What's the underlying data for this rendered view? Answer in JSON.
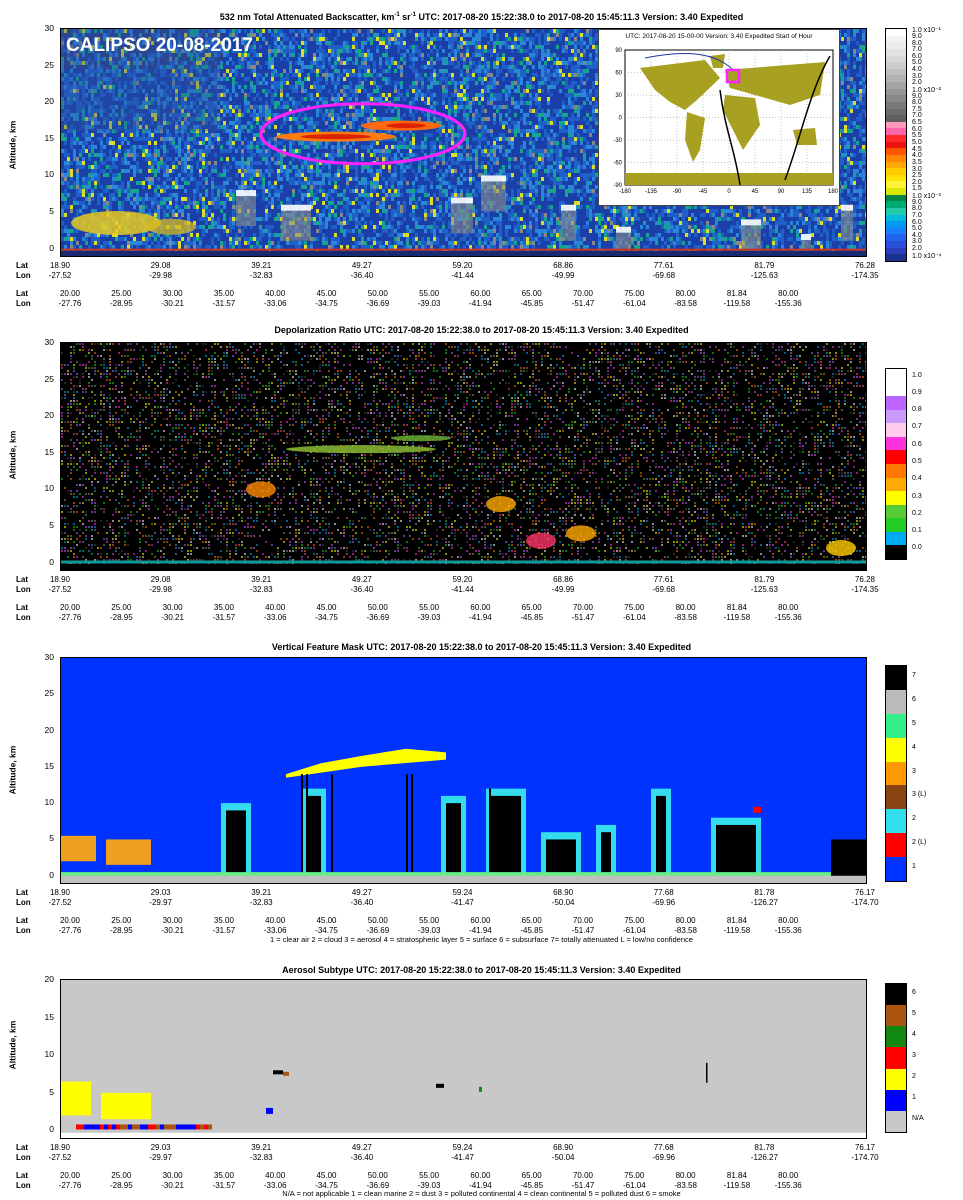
{
  "overlay_label": "CALIPSO 20-08-2017",
  "panels": [
    {
      "title": "532 nm Total Attenuated Backscatter, km",
      "title_sup1": "-1",
      "title_mid": " sr",
      "title_sup2": "-1",
      "title_rest": "   UTC:  2017-08-20 15:22:38.0  to  2017-08-20 15:45:11.3   Version: 3.40  Expedited",
      "ylabel": "Altitude, km",
      "yticks": [
        "30",
        "25",
        "20",
        "15",
        "10",
        "5",
        "0"
      ],
      "lat_lon_major": [
        [
          "18.90",
          "-27.52"
        ],
        [
          "29.08",
          "-29.98"
        ],
        [
          "39.21",
          "-32.83"
        ],
        [
          "49.27",
          "-36.40"
        ],
        [
          "59.20",
          "-41.44"
        ],
        [
          "68.86",
          "-49.99"
        ],
        [
          "77.61",
          "-69.68"
        ],
        [
          "81.79",
          "-125.63"
        ],
        [
          "76.28",
          "-174.35"
        ]
      ],
      "lat_lon_minor": [
        [
          "20.00",
          "-27.76"
        ],
        [
          "25.00",
          "-28.95"
        ],
        [
          "30.00",
          "-30.21"
        ],
        [
          "35.00",
          "-31.57"
        ],
        [
          "40.00",
          "-33.06"
        ],
        [
          "45.00",
          "-34.75"
        ],
        [
          "50.00",
          "-36.69"
        ],
        [
          "55.00",
          "-39.03"
        ],
        [
          "60.00",
          "-41.94"
        ],
        [
          "65.00",
          "-45.85"
        ],
        [
          "70.00",
          "-51.47"
        ],
        [
          "75.00",
          "-61.04"
        ],
        [
          "80.00",
          "-83.58"
        ],
        [
          "81.84",
          "-119.58"
        ],
        [
          "80.00",
          "-155.36"
        ]
      ],
      "colorbar": [
        "1.0 x10⁻¹",
        "9.0",
        "8.0",
        "7.0",
        "6.0",
        "5.0",
        "4.0",
        "3.0",
        "2.0",
        "1.0 x10⁻²",
        "9.0",
        "8.0",
        "7.5",
        "7.0",
        "6.5",
        "6.0",
        "5.5",
        "5.0",
        "4.5",
        "4.0",
        "3.5",
        "3.0",
        "2.5",
        "2.0",
        "1.5",
        "1.0 x10⁻³",
        "9.0",
        "8.0",
        "7.0",
        "6.0",
        "5.0",
        "4.0",
        "3.0",
        "2.0",
        "1.0 x10⁻⁴"
      ]
    },
    {
      "title": "Depolarization Ratio   UTC:  2017-08-20 15:22:38.0  to  2017-08-20 15:45:11.3   Version: 3.40  Expedited",
      "ylabel": "Altitude, km",
      "yticks": [
        "30",
        "25",
        "20",
        "15",
        "10",
        "5",
        "0"
      ],
      "lat_lon_major": [
        [
          "18.90",
          "-27.52"
        ],
        [
          "29.08",
          "-29.98"
        ],
        [
          "39.21",
          "-32.83"
        ],
        [
          "49.27",
          "-36.40"
        ],
        [
          "59.20",
          "-41.44"
        ],
        [
          "68.86",
          "-49.99"
        ],
        [
          "77.61",
          "-69.68"
        ],
        [
          "81.79",
          "-125.63"
        ],
        [
          "76.28",
          "-174.35"
        ]
      ],
      "lat_lon_minor": [
        [
          "20.00",
          "-27.76"
        ],
        [
          "25.00",
          "-28.95"
        ],
        [
          "30.00",
          "-30.21"
        ],
        [
          "35.00",
          "-31.57"
        ],
        [
          "40.00",
          "-33.06"
        ],
        [
          "45.00",
          "-34.75"
        ],
        [
          "50.00",
          "-36.69"
        ],
        [
          "55.00",
          "-39.03"
        ],
        [
          "60.00",
          "-41.94"
        ],
        [
          "65.00",
          "-45.85"
        ],
        [
          "70.00",
          "-51.47"
        ],
        [
          "75.00",
          "-61.04"
        ],
        [
          "80.00",
          "-83.58"
        ],
        [
          "81.84",
          "-119.58"
        ],
        [
          "80.00",
          "-155.36"
        ]
      ],
      "colorbar": [
        "1.0",
        "0.9",
        "0.8",
        "0.7",
        "0.6",
        "0.5",
        "0.4",
        "0.3",
        "0.2",
        "0.1",
        "0.0"
      ]
    },
    {
      "title": "Vertical Feature Mask   UTC:  2017-08-20  15:22:38.0  to  2017-08-20  15:45:11.3   Version: 3.40  Expedited",
      "ylabel": "Altitude, km",
      "yticks": [
        "30",
        "25",
        "20",
        "15",
        "10",
        "5",
        "0"
      ],
      "lat_lon_major": [
        [
          "18.90",
          "-27.52"
        ],
        [
          "29.03",
          "-29.97"
        ],
        [
          "39.21",
          "-32.83"
        ],
        [
          "49.27",
          "-36.40"
        ],
        [
          "59.24",
          "-41.47"
        ],
        [
          "68.90",
          "-50.04"
        ],
        [
          "77.68",
          "-69.96"
        ],
        [
          "81.78",
          "-126.27"
        ],
        [
          "76.17",
          "-174.70"
        ]
      ],
      "lat_lon_minor": [
        [
          "20.00",
          "-27.76"
        ],
        [
          "25.00",
          "-28.95"
        ],
        [
          "30.00",
          "-30.21"
        ],
        [
          "35.00",
          "-31.57"
        ],
        [
          "40.00",
          "-33.06"
        ],
        [
          "45.00",
          "-34.75"
        ],
        [
          "50.00",
          "-36.69"
        ],
        [
          "55.00",
          "-39.03"
        ],
        [
          "60.00",
          "-41.94"
        ],
        [
          "65.00",
          "-45.85"
        ],
        [
          "70.00",
          "-51.47"
        ],
        [
          "75.00",
          "-61.04"
        ],
        [
          "80.00",
          "-83.58"
        ],
        [
          "81.84",
          "-119.58"
        ],
        [
          "80.00",
          "-155.36"
        ]
      ],
      "colorbar": [
        "7",
        "6",
        "5",
        "4",
        "3",
        "3 (L)",
        "2",
        "2 (L)",
        "1"
      ],
      "legend": "1 = clear air    2 = cloud    3 = aerosol    4 = stratospheric layer    5 = surface    6 = subsurface    7= totally attenuated    L = low/no confidence"
    },
    {
      "title": "Aerosol Subtype   UTC:  2017-08-20  15:22:38.0  to  2017-08-20  15:45:11.3   Version: 3.40  Expedited",
      "ylabel": "Altitude, km",
      "yticks": [
        "20",
        "15",
        "10",
        "5",
        "0"
      ],
      "lat_lon_major": [
        [
          "18.90",
          "-27.52"
        ],
        [
          "29.03",
          "-29.97"
        ],
        [
          "39.21",
          "-32.83"
        ],
        [
          "49.27",
          "-36.40"
        ],
        [
          "59.24",
          "-41.47"
        ],
        [
          "68.90",
          "-50.04"
        ],
        [
          "77.68",
          "-69.96"
        ],
        [
          "81.78",
          "-126.27"
        ],
        [
          "76.17",
          "-174.70"
        ]
      ],
      "lat_lon_minor": [
        [
          "20.00",
          "-27.76"
        ],
        [
          "25.00",
          "-28.95"
        ],
        [
          "30.00",
          "-30.21"
        ],
        [
          "35.00",
          "-31.57"
        ],
        [
          "40.00",
          "-33.06"
        ],
        [
          "45.00",
          "-34.75"
        ],
        [
          "50.00",
          "-36.69"
        ],
        [
          "55.00",
          "-39.03"
        ],
        [
          "60.00",
          "-41.94"
        ],
        [
          "65.00",
          "-45.85"
        ],
        [
          "70.00",
          "-51.47"
        ],
        [
          "75.00",
          "-61.04"
        ],
        [
          "80.00",
          "-83.58"
        ],
        [
          "81.84",
          "-119.58"
        ],
        [
          "80.00",
          "-155.36"
        ]
      ],
      "colorbar": [
        "6",
        "5",
        "4",
        "3",
        "2",
        "1",
        "N/A"
      ],
      "legend": "N/A = not applicable    1 = clean marine    2 = dust    3 = polluted continental    4 = clean continental    5 = polluted dust    6 = smoke"
    }
  ],
  "row_labels": {
    "lat": "Lat",
    "lon": "Lon"
  },
  "inset": {
    "title": "UTC: 2017-08-20  15-00-00    Version: 3.40  Expedited    Start of Hour",
    "lat_ticks": [
      "90",
      "60",
      "30",
      "0",
      "-30",
      "-60",
      "-90"
    ],
    "lon_ticks": [
      "-180",
      "-135",
      "-90",
      "-45",
      "0",
      "45",
      "90",
      "135",
      "180"
    ]
  },
  "colors": {
    "vfm_clear_air": "#0033ff",
    "vfm_cloud": "#33ddee",
    "vfm_aerosol": "#f0a020",
    "vfm_strat": "#ffff00",
    "vfm_surface": "#66ee88",
    "vfm_subsurface": "#c0c0c0",
    "vfm_attenuated": "#000000",
    "highlight": "#ff22ff"
  },
  "chart_data": [
    {
      "type": "heatmap",
      "title": "532 nm Total Attenuated Backscatter, km-1 sr-1",
      "ylabel": "Altitude, km",
      "ylim": [
        -1,
        30
      ],
      "x_ticks_lat": [
        "18.90",
        "29.08",
        "39.21",
        "49.27",
        "59.20",
        "68.86",
        "77.61",
        "81.79",
        "76.28"
      ],
      "note": "CALIPSO 20-08-2017"
    },
    {
      "type": "heatmap",
      "title": "Depolarization Ratio",
      "ylabel": "Altitude, km",
      "ylim": [
        -1,
        30
      ],
      "color_scale": [
        0.0,
        0.1,
        0.2,
        0.3,
        0.4,
        0.5,
        0.6,
        0.7,
        0.8,
        0.9,
        1.0
      ]
    },
    {
      "type": "heatmap",
      "title": "Vertical Feature Mask",
      "ylabel": "Altitude, km",
      "ylim": [
        -1,
        30
      ],
      "classes": [
        "1",
        "2 (L)",
        "2",
        "3 (L)",
        "3",
        "4",
        "5",
        "6",
        "7"
      ]
    },
    {
      "type": "heatmap",
      "title": "Aerosol Subtype",
      "ylabel": "Altitude, km",
      "ylim": [
        -1,
        20
      ],
      "classes": [
        "N/A",
        "1",
        "2",
        "3",
        "4",
        "5",
        "6"
      ]
    }
  ]
}
